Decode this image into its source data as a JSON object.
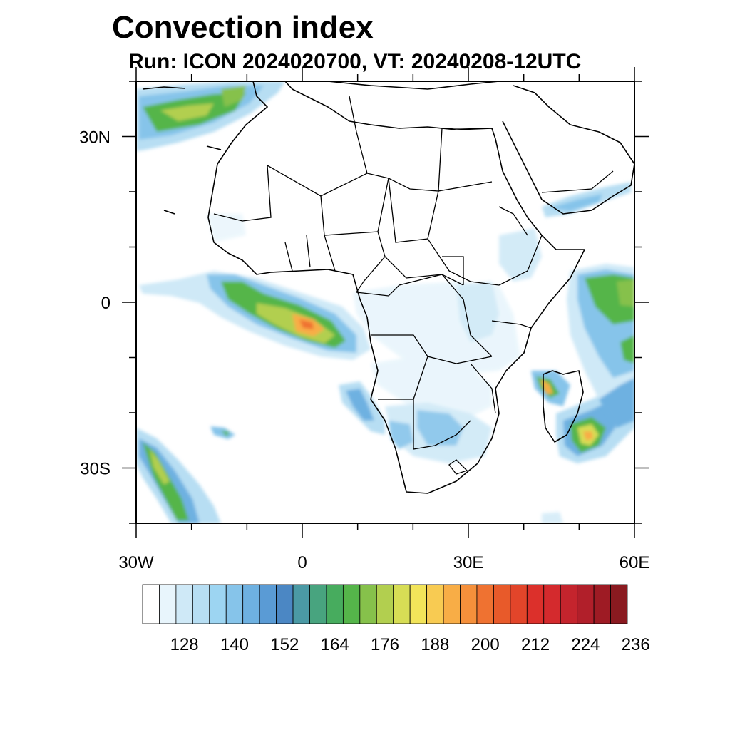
{
  "title": "Convection index",
  "subtitle": "Run: ICON 2024020700,  VT: 20240208-12UTC",
  "map": {
    "projection": "cylindrical-equidistant",
    "lon_range": [
      -30,
      60
    ],
    "lat_range": [
      -40,
      40
    ],
    "lat_tick_labels": [
      {
        "lat": 30,
        "text": "30N"
      },
      {
        "lat": 0,
        "text": "0"
      },
      {
        "lat": -30,
        "text": "30S"
      }
    ],
    "lon_tick_labels": [
      {
        "lon": -30,
        "text": "30W"
      },
      {
        "lon": 0,
        "text": "0"
      },
      {
        "lon": 30,
        "text": "30E"
      },
      {
        "lon": 60,
        "text": "60E"
      }
    ]
  },
  "colorbar": {
    "labels": [
      "128",
      "140",
      "152",
      "164",
      "176",
      "188",
      "200",
      "212",
      "224",
      "236"
    ],
    "colors": [
      "#ffffff",
      "#e8f5fc",
      "#cfe9f7",
      "#b7def3",
      "#9dd5f2",
      "#86c4ea",
      "#6eb1e1",
      "#5a9bd5",
      "#4b87c4",
      "#4b9aa5",
      "#48a47f",
      "#47ac5e",
      "#55b54a",
      "#86c14b",
      "#b2cf4f",
      "#d7dd55",
      "#f2e45a",
      "#f8cb52",
      "#f8ad46",
      "#f5903b",
      "#ef7231",
      "#e85a2a",
      "#e2452a",
      "#dc302b",
      "#d42a2d",
      "#c4242d",
      "#b11f2a",
      "#9e1b24",
      "#8a1a20"
    ]
  }
}
